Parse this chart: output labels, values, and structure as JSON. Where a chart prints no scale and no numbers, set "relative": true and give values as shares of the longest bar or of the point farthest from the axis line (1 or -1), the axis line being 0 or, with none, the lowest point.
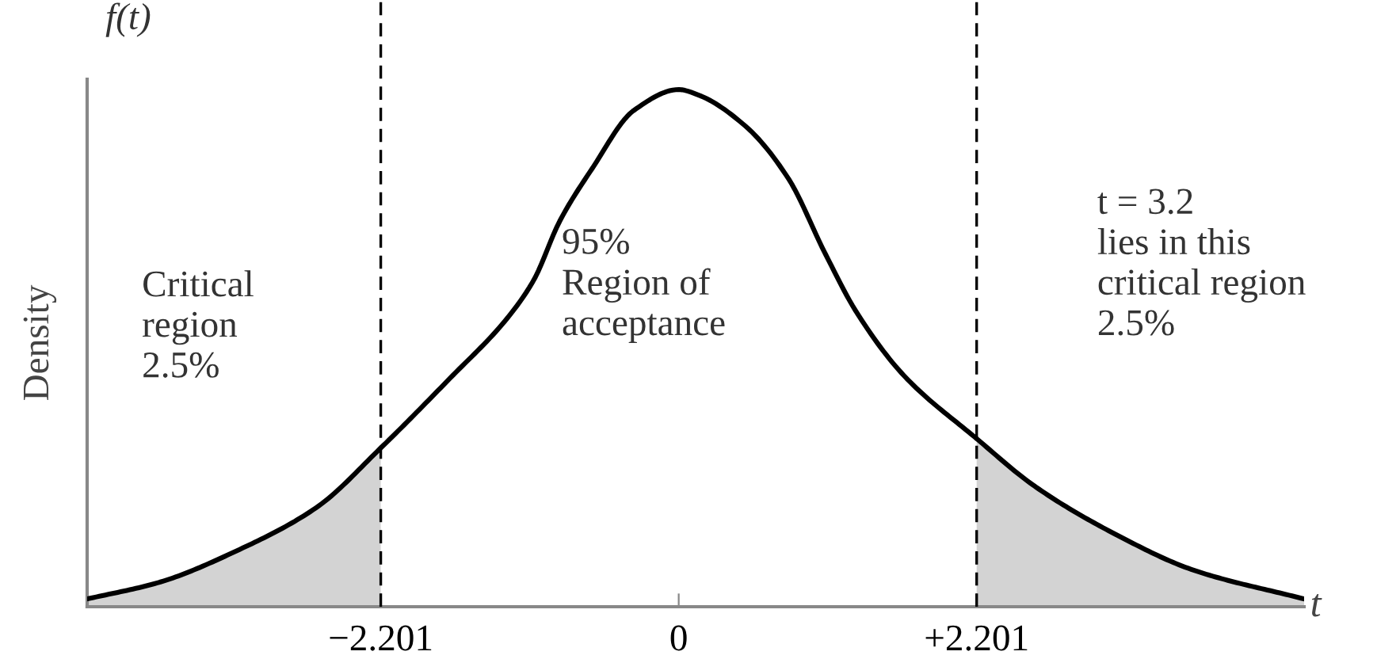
{
  "chart_data": {
    "type": "line",
    "relative": true,
    "xlabel": "t",
    "ylabel": "Density",
    "annotations": [
      "f(t)",
      "Critical\nregion\n2.5%",
      "95%\nRegion of\nacceptance",
      "t = 3.2\nlies in this\ncritical region\n2.5%"
    ],
    "xlim": [
      -4.37,
      4.62
    ],
    "xticks": [
      {
        "value": -2.201,
        "label": "−2.201"
      },
      0,
      {
        "value": 2.201,
        "label": "+2.201"
      }
    ],
    "series": [
      {
        "type": "area",
        "color": "#d3d3d3",
        "x": [
          -4.37,
          -3.84,
          -3.25,
          -2.67,
          -2.201
        ],
        "values": [
          0.015,
          0.047,
          0.11,
          0.193,
          0.307
        ]
      },
      {
        "type": "area",
        "color": "#d3d3d3",
        "x": [
          2.201,
          2.63,
          3.22,
          3.8,
          4.62
        ],
        "values": [
          0.325,
          0.233,
          0.141,
          0.071,
          0.015
        ]
      },
      {
        "color": "#000000",
        "x": [
          -4.37,
          -3.84,
          -3.25,
          -2.67,
          -2.201,
          -1.7,
          -1.26,
          -1.07,
          -0.88,
          -0.64,
          -0.33,
          0,
          0.14,
          0.49,
          0.81,
          1.08,
          1.31,
          1.66,
          2.201,
          2.63,
          3.22,
          3.8,
          4.62
        ],
        "values": [
          0.015,
          0.047,
          0.11,
          0.193,
          0.307,
          0.439,
          0.56,
          0.632,
          0.745,
          0.847,
          0.96,
          1.0,
          0.99,
          0.93,
          0.828,
          0.684,
          0.571,
          0.448,
          0.325,
          0.233,
          0.141,
          0.071,
          0.015
        ]
      }
    ],
    "ref_lines": [
      {
        "axis": "x",
        "value": -2.201,
        "color": "#000000",
        "line_style": "dashed"
      },
      {
        "axis": "x",
        "value": 2.201,
        "color": "#000000",
        "line_style": "dashed"
      }
    ],
    "legend": false
  }
}
